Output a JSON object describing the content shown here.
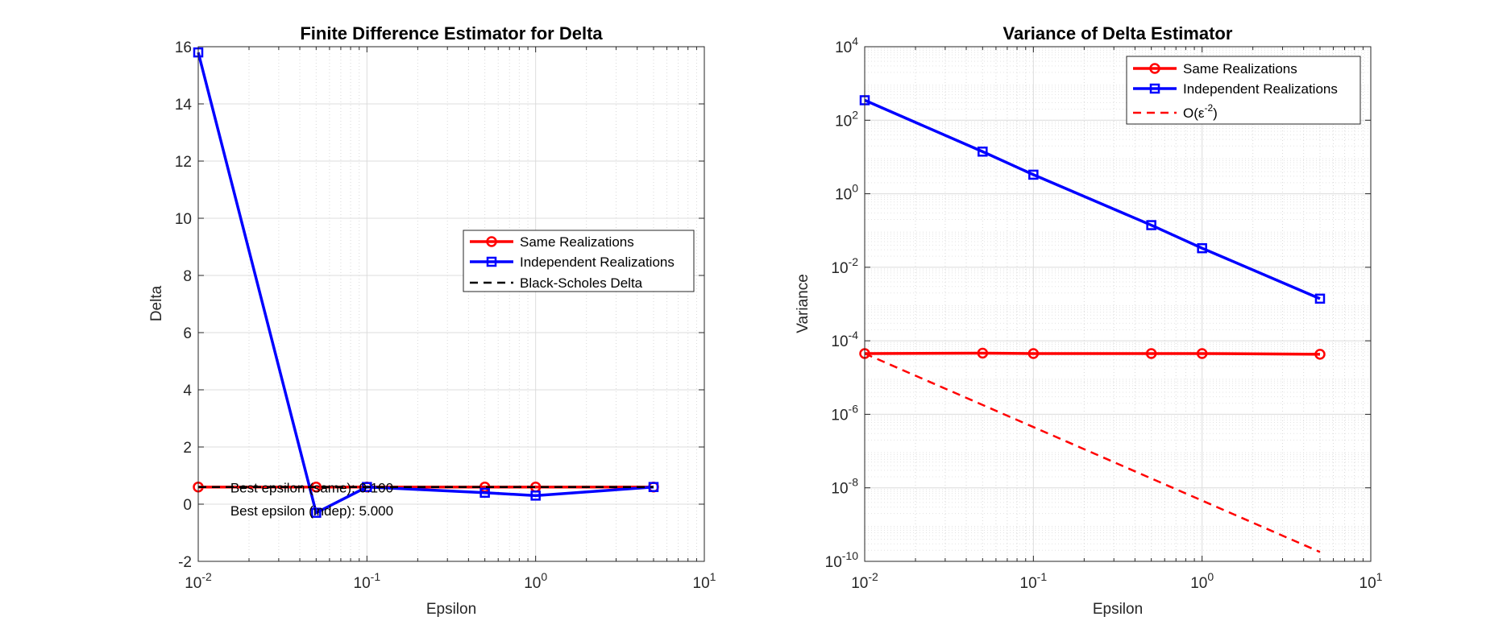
{
  "chart_data": [
    {
      "type": "line",
      "title": "Finite Difference Estimator for Delta",
      "xlabel": "Epsilon",
      "ylabel": "Delta",
      "xscale": "log",
      "yscale": "linear",
      "xlim": [
        0.01,
        10
      ],
      "ylim": [
        -2,
        16
      ],
      "grid": true,
      "legend_position": "center-right",
      "x_ticks": [
        0.01,
        0.1,
        1,
        10
      ],
      "x_tick_labels": [
        {
          "base": "10",
          "exp": "-2"
        },
        {
          "base": "10",
          "exp": "-1"
        },
        {
          "base": "10",
          "exp": "0"
        },
        {
          "base": "10",
          "exp": "1"
        }
      ],
      "y_ticks": [
        -2,
        0,
        2,
        4,
        6,
        8,
        10,
        12,
        14,
        16
      ],
      "y_tick_labels": [
        "-2",
        "0",
        "2",
        "4",
        "6",
        "8",
        "10",
        "12",
        "14",
        "16"
      ],
      "x": [
        0.01,
        0.05,
        0.1,
        0.5,
        1,
        5
      ],
      "series": [
        {
          "name": "Same Realizations",
          "color": "#ff0000",
          "marker": "circle",
          "line_style": "solid",
          "values": [
            0.6,
            0.6,
            0.6,
            0.6,
            0.6,
            0.6
          ]
        },
        {
          "name": "Independent Realizations",
          "color": "#0000ff",
          "marker": "square",
          "line_style": "solid",
          "values": [
            15.8,
            -0.3,
            0.6,
            0.4,
            0.3,
            0.6
          ]
        },
        {
          "name": "Black-Scholes Delta",
          "color": "#000000",
          "marker": "none",
          "line_style": "dashed",
          "x": [
            0.01,
            5
          ],
          "values": [
            0.6,
            0.6
          ]
        }
      ],
      "annotations": [
        {
          "text": "Best epsilon (same): 0.100",
          "x": 0.0155,
          "y": 0.6
        },
        {
          "text": "Best epsilon (indep): 5.000",
          "x": 0.0155,
          "y": -0.2
        }
      ]
    },
    {
      "type": "line",
      "title": "Variance of Delta Estimator",
      "xlabel": "Epsilon",
      "ylabel": "Variance",
      "xscale": "log",
      "yscale": "log",
      "xlim": [
        0.01,
        10
      ],
      "ylim": [
        1e-10,
        10000
      ],
      "grid": true,
      "legend_position": "top-right",
      "x_ticks": [
        0.01,
        0.1,
        1,
        10
      ],
      "x_tick_labels": [
        {
          "base": "10",
          "exp": "-2"
        },
        {
          "base": "10",
          "exp": "-1"
        },
        {
          "base": "10",
          "exp": "0"
        },
        {
          "base": "10",
          "exp": "1"
        }
      ],
      "y_ticks": [
        1e-10,
        1e-08,
        1e-06,
        0.0001,
        0.01,
        1,
        100,
        10000
      ],
      "y_tick_labels": [
        {
          "base": "10",
          "exp": "-10"
        },
        {
          "base": "10",
          "exp": "-8"
        },
        {
          "base": "10",
          "exp": "-6"
        },
        {
          "base": "10",
          "exp": "-4"
        },
        {
          "base": "10",
          "exp": "-2"
        },
        {
          "base": "10",
          "exp": "0"
        },
        {
          "base": "10",
          "exp": "2"
        },
        {
          "base": "10",
          "exp": "4"
        }
      ],
      "x": [
        0.01,
        0.05,
        0.1,
        0.5,
        1,
        5
      ],
      "series": [
        {
          "name": "Same Realizations",
          "color": "#ff0000",
          "marker": "circle",
          "line_style": "solid",
          "values": [
            4.5e-05,
            4.6e-05,
            4.5e-05,
            4.5e-05,
            4.5e-05,
            4.3e-05
          ]
        },
        {
          "name": "Independent Realizations",
          "color": "#0000ff",
          "marker": "square",
          "line_style": "solid",
          "values": [
            350,
            14,
            3.3,
            0.14,
            0.033,
            0.0014
          ]
        },
        {
          "name": "O(ε⁻²)",
          "legend": {
            "prefix": "O(",
            "symbol": "ε",
            "exp": "-2",
            "suffix": ")"
          },
          "color": "#ff0000",
          "marker": "none",
          "line_style": "dashed",
          "x": [
            0.01,
            5
          ],
          "values": [
            4.5e-05,
            1.8e-10
          ]
        }
      ]
    }
  ]
}
